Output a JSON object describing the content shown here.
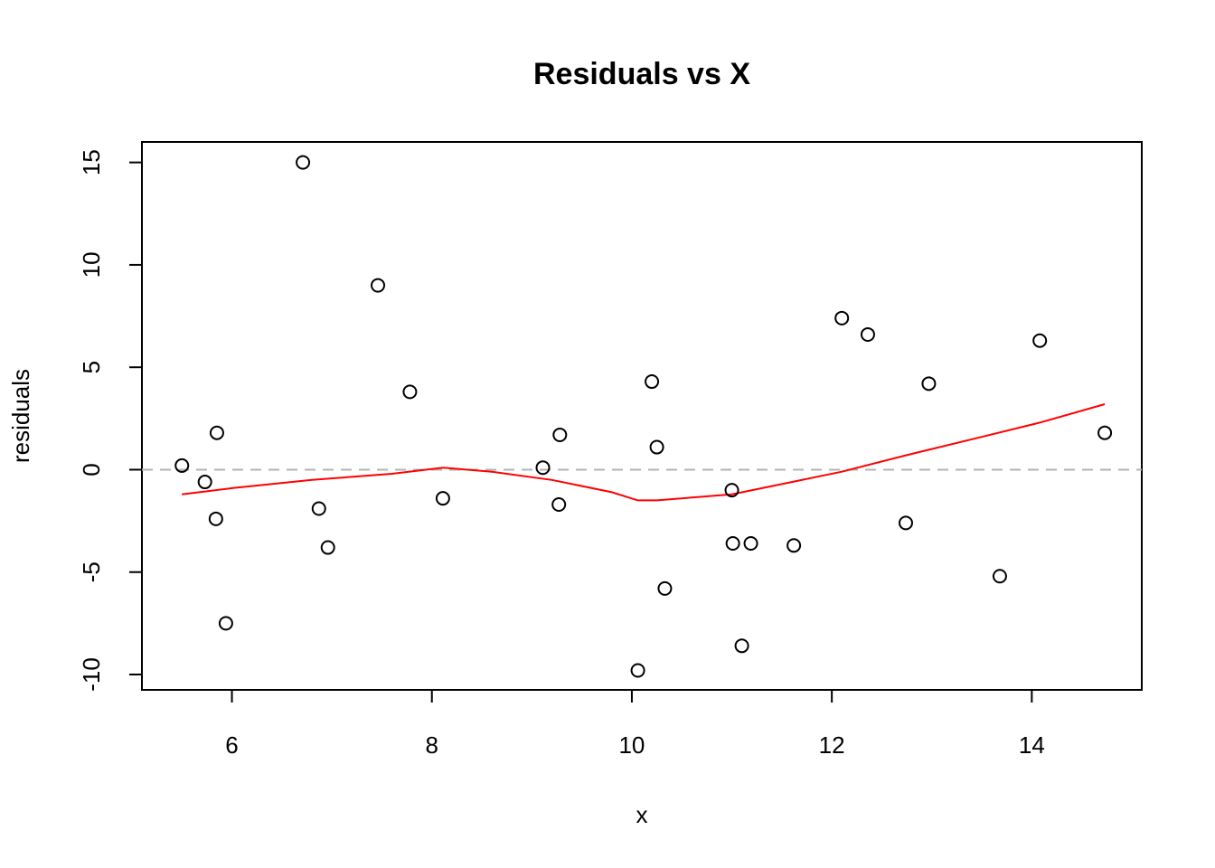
{
  "chart_data": {
    "type": "scatter",
    "title": "Residuals vs X",
    "xlabel": "x",
    "ylabel": "residuals",
    "xlim": [
      5.1,
      15.1
    ],
    "ylim": [
      -10.75,
      16.0
    ],
    "x_ticks": [
      6,
      8,
      10,
      12,
      14
    ],
    "y_ticks": [
      -10,
      -5,
      0,
      5,
      10,
      15
    ],
    "grid": false,
    "legend": "none",
    "reference_line": {
      "y": 0,
      "style": "dashed",
      "color": "#b3b3b3"
    },
    "points": {
      "marker": "open-circle",
      "color": "#000000",
      "data": [
        {
          "x": 5.5,
          "y": 0.2
        },
        {
          "x": 5.73,
          "y": -0.6
        },
        {
          "x": 5.84,
          "y": -2.4
        },
        {
          "x": 5.85,
          "y": 1.8
        },
        {
          "x": 5.94,
          "y": -7.5
        },
        {
          "x": 6.71,
          "y": 15.0
        },
        {
          "x": 6.87,
          "y": -1.9
        },
        {
          "x": 6.96,
          "y": -3.8
        },
        {
          "x": 7.46,
          "y": 9.0
        },
        {
          "x": 7.78,
          "y": 3.8
        },
        {
          "x": 8.11,
          "y": -1.4
        },
        {
          "x": 9.11,
          "y": 0.1
        },
        {
          "x": 9.27,
          "y": -1.7
        },
        {
          "x": 9.28,
          "y": 1.7
        },
        {
          "x": 10.06,
          "y": -9.8
        },
        {
          "x": 10.2,
          "y": 4.3
        },
        {
          "x": 10.25,
          "y": 1.1
        },
        {
          "x": 10.33,
          "y": -5.8
        },
        {
          "x": 11.0,
          "y": -1.0
        },
        {
          "x": 11.01,
          "y": -3.6
        },
        {
          "x": 11.1,
          "y": -8.6
        },
        {
          "x": 11.19,
          "y": -3.6
        },
        {
          "x": 11.62,
          "y": -3.7
        },
        {
          "x": 12.1,
          "y": 7.4
        },
        {
          "x": 12.36,
          "y": 6.6
        },
        {
          "x": 12.74,
          "y": -2.6
        },
        {
          "x": 12.97,
          "y": 4.2
        },
        {
          "x": 13.68,
          "y": -5.2
        },
        {
          "x": 14.08,
          "y": 6.3
        },
        {
          "x": 14.73,
          "y": 1.8
        }
      ]
    },
    "smooth_line": {
      "color": "#ff0000",
      "data": [
        {
          "x": 5.5,
          "y": -1.2
        },
        {
          "x": 6.0,
          "y": -0.9
        },
        {
          "x": 6.8,
          "y": -0.5
        },
        {
          "x": 7.6,
          "y": -0.2
        },
        {
          "x": 8.11,
          "y": 0.1
        },
        {
          "x": 8.6,
          "y": -0.1
        },
        {
          "x": 9.2,
          "y": -0.5
        },
        {
          "x": 9.8,
          "y": -1.1
        },
        {
          "x": 10.06,
          "y": -1.5
        },
        {
          "x": 10.25,
          "y": -1.5
        },
        {
          "x": 11.0,
          "y": -1.2
        },
        {
          "x": 11.6,
          "y": -0.6
        },
        {
          "x": 12.1,
          "y": -0.1
        },
        {
          "x": 12.74,
          "y": 0.7
        },
        {
          "x": 13.5,
          "y": 1.6
        },
        {
          "x": 14.08,
          "y": 2.3
        },
        {
          "x": 14.73,
          "y": 3.2
        }
      ]
    }
  }
}
